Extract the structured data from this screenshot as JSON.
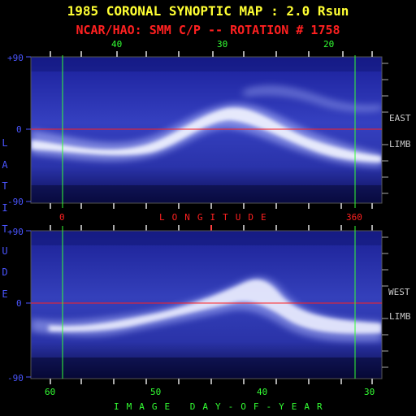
{
  "title": {
    "line1": "1985 CORONAL SYNOPTIC MAP : 2.0 Rsun",
    "line2": "NCAR/HAO: SMM C/P -- ROTATION # 1758"
  },
  "colors": {
    "title1": "#ffff33",
    "title2": "#ff2020",
    "carrington_ticks": "#33ff33",
    "latitude": "#4a55ff",
    "longitude": "#ff2020",
    "day_axis": "#33ff33",
    "limb_labels": "#c8c8c8",
    "equator_line": "#ff2020",
    "boundary_line": "#33ff33"
  },
  "top_axis": {
    "labels": [
      "40",
      "30",
      "20"
    ]
  },
  "latitude_axis": {
    "label": "LATITUDE",
    "top_panel_ticks": [
      "+90",
      "0",
      "-90"
    ],
    "bottom_panel_ticks": [
      "+90",
      "0",
      "-90"
    ]
  },
  "longitude_axis": {
    "label": "LONGITUDE",
    "start": "0",
    "end": "360"
  },
  "bottom_axis": {
    "label": "IMAGE DAY-OF-YEAR",
    "labels": [
      "60",
      "50",
      "40",
      "30"
    ]
  },
  "limb_labels": {
    "east": "EAST",
    "west": "WEST",
    "limb_top": "LIMB",
    "limb_bottom": "LIMB"
  }
}
